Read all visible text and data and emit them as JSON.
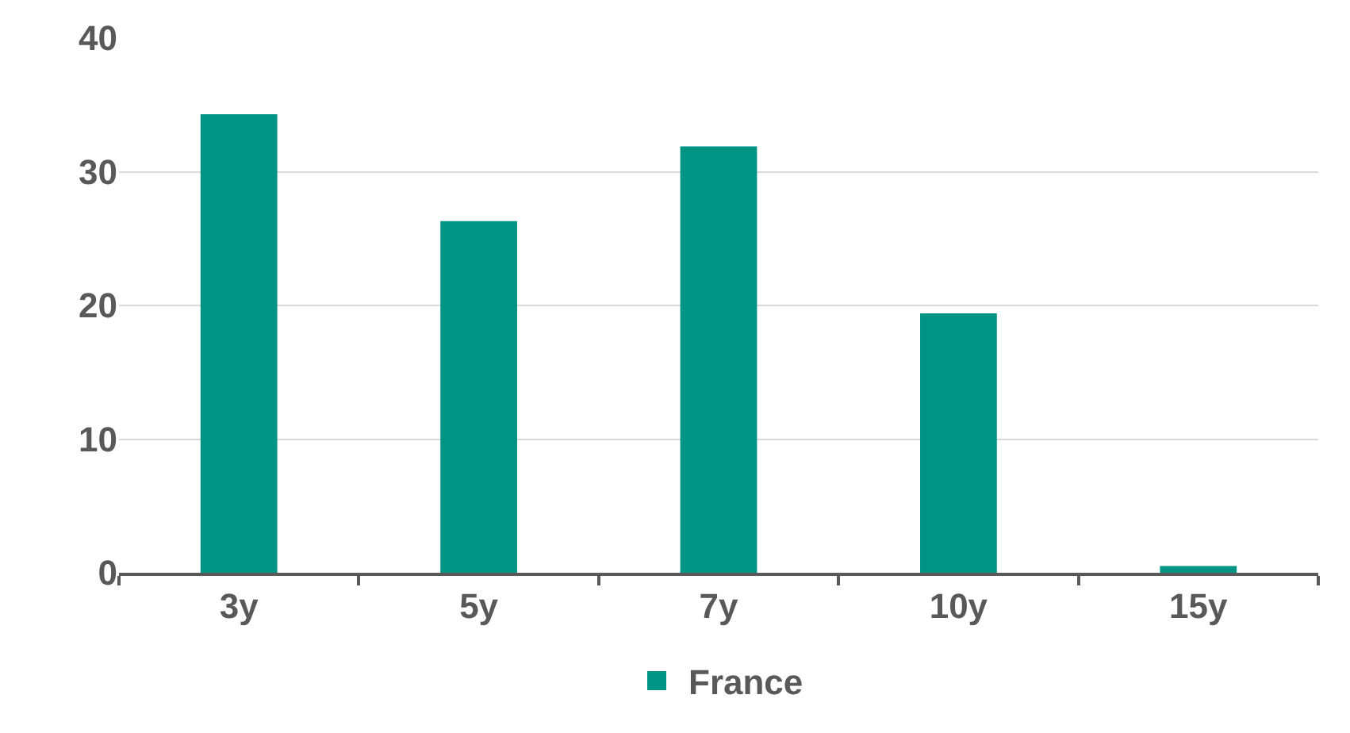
{
  "chart_data": {
    "type": "bar",
    "categories": [
      "3y",
      "5y",
      "7y",
      "10y",
      "15y"
    ],
    "series": [
      {
        "name": "France",
        "color": "#009485",
        "values": [
          34.3,
          26.3,
          31.9,
          19.4,
          0.5
        ]
      }
    ],
    "ylim": [
      0,
      40
    ],
    "yticks": [
      0,
      10,
      20,
      30,
      40
    ],
    "grid": "y",
    "legend": "bottom"
  }
}
